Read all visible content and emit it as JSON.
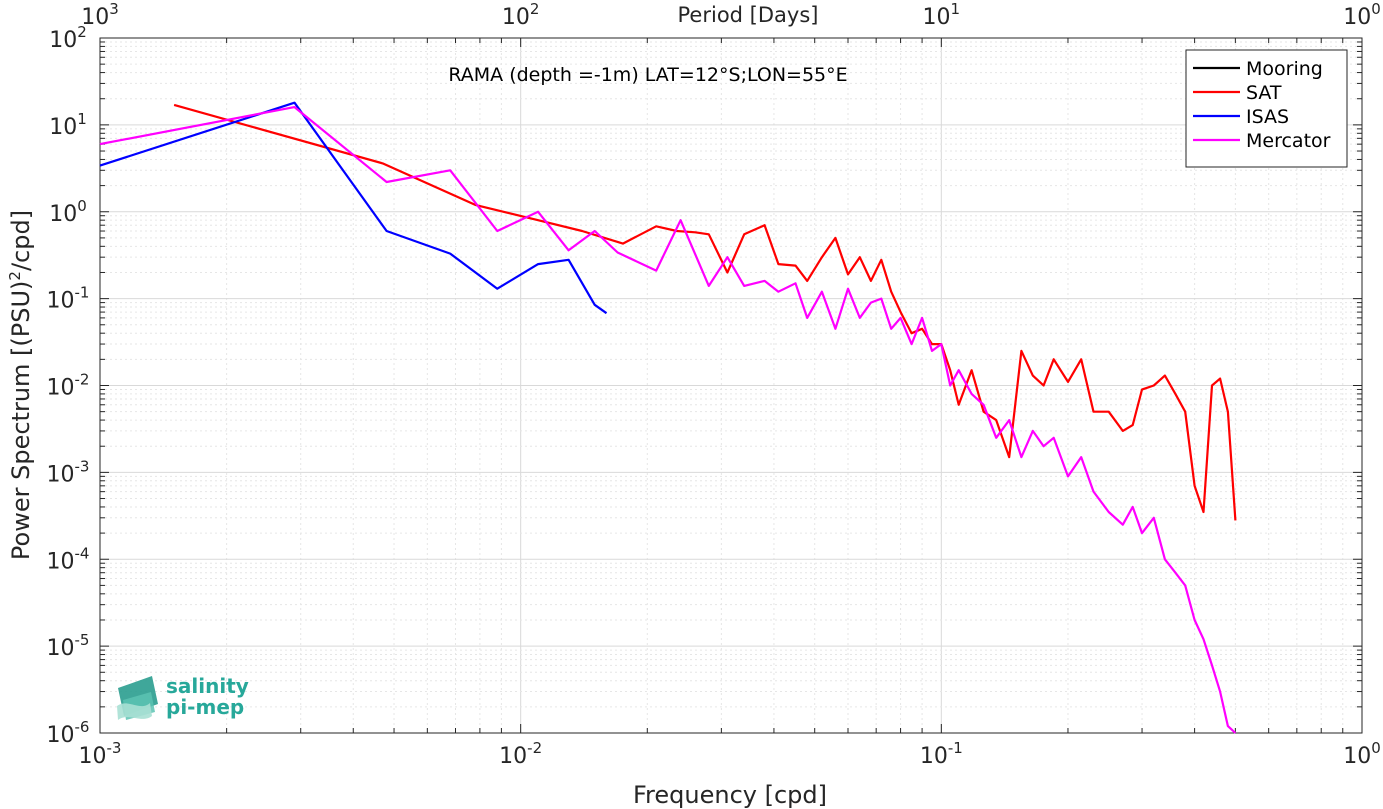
{
  "chart_data": {
    "type": "line",
    "x_scale": "log",
    "y_scale": "log",
    "xlabel": "Frequency [cpd]",
    "ylabel": "Power Spectrum [(PSU)",
    "ylabel_sup": "2",
    "ylabel_end": "/cpd]",
    "top_xlabel": "Period [Days]",
    "annotation": "RAMA (depth =-1m) LAT=12°S;LON=55°E",
    "xlim": [
      0.001,
      1
    ],
    "ylim": [
      1e-06,
      100
    ],
    "grid": true,
    "minor_grid": true,
    "legend_position": "top-right",
    "x_ticks": [
      {
        "v": 0.001,
        "base": "10",
        "exp": "-3"
      },
      {
        "v": 0.01,
        "base": "10",
        "exp": "-2"
      },
      {
        "v": 0.1,
        "base": "10",
        "exp": "-1"
      },
      {
        "v": 1,
        "base": "10",
        "exp": "0"
      }
    ],
    "top_ticks": [
      {
        "v": 0.001,
        "base": "10",
        "exp": "3"
      },
      {
        "v": 0.01,
        "base": "10",
        "exp": "2"
      },
      {
        "v": 0.1,
        "base": "10",
        "exp": "1"
      },
      {
        "v": 1,
        "base": "10",
        "exp": "0"
      }
    ],
    "y_ticks": [
      {
        "v": 100,
        "base": "10",
        "exp": "2"
      },
      {
        "v": 10,
        "base": "10",
        "exp": "1"
      },
      {
        "v": 1,
        "base": "10",
        "exp": "0"
      },
      {
        "v": 0.1,
        "base": "10",
        "exp": "-1"
      },
      {
        "v": 0.01,
        "base": "10",
        "exp": "-2"
      },
      {
        "v": 0.001,
        "base": "10",
        "exp": "-3"
      },
      {
        "v": 0.0001,
        "base": "10",
        "exp": "-4"
      },
      {
        "v": 1e-05,
        "base": "10",
        "exp": "-5"
      },
      {
        "v": 1e-06,
        "base": "10",
        "exp": "-6"
      }
    ],
    "series": [
      {
        "name": "Mooring",
        "color": "#000000",
        "x": [],
        "y": []
      },
      {
        "name": "SAT",
        "color": "#ff0000",
        "x": [
          0.0015,
          0.0047,
          0.0078,
          0.011,
          0.014,
          0.0175,
          0.021,
          0.0235,
          0.026,
          0.028,
          0.031,
          0.034,
          0.038,
          0.041,
          0.045,
          0.048,
          0.052,
          0.056,
          0.06,
          0.064,
          0.068,
          0.072,
          0.076,
          0.08,
          0.085,
          0.09,
          0.095,
          0.1,
          0.105,
          0.11,
          0.118,
          0.126,
          0.135,
          0.145,
          0.155,
          0.165,
          0.175,
          0.185,
          0.2,
          0.215,
          0.23,
          0.25,
          0.27,
          0.285,
          0.3,
          0.32,
          0.34,
          0.36,
          0.38,
          0.4,
          0.42,
          0.44,
          0.46,
          0.48,
          0.5
        ],
        "y": [
          17,
          3.6,
          1.2,
          0.8,
          0.6,
          0.43,
          0.68,
          0.6,
          0.58,
          0.55,
          0.2,
          0.55,
          0.7,
          0.25,
          0.24,
          0.16,
          0.3,
          0.5,
          0.19,
          0.3,
          0.16,
          0.28,
          0.12,
          0.07,
          0.04,
          0.045,
          0.03,
          0.03,
          0.015,
          0.006,
          0.015,
          0.005,
          0.004,
          0.0015,
          0.025,
          0.013,
          0.01,
          0.02,
          0.011,
          0.02,
          0.005,
          0.005,
          0.003,
          0.0035,
          0.009,
          0.01,
          0.013,
          0.008,
          0.005,
          0.0007,
          0.00035,
          0.01,
          0.012,
          0.005,
          0.00028
        ]
      },
      {
        "name": "ISAS",
        "color": "#0000ff",
        "x": [
          0.001,
          0.0029,
          0.0048,
          0.0068,
          0.0088,
          0.011,
          0.013,
          0.015,
          0.016
        ],
        "y": [
          3.4,
          18,
          0.6,
          0.33,
          0.13,
          0.25,
          0.28,
          0.085,
          0.068
        ]
      },
      {
        "name": "Mercator",
        "color": "#ff00ff",
        "x": [
          0.001,
          0.0029,
          0.0048,
          0.0068,
          0.0088,
          0.011,
          0.013,
          0.015,
          0.017,
          0.021,
          0.024,
          0.028,
          0.031,
          0.034,
          0.038,
          0.041,
          0.045,
          0.048,
          0.052,
          0.056,
          0.06,
          0.064,
          0.068,
          0.072,
          0.076,
          0.08,
          0.085,
          0.09,
          0.095,
          0.1,
          0.105,
          0.11,
          0.118,
          0.126,
          0.135,
          0.145,
          0.155,
          0.165,
          0.175,
          0.185,
          0.2,
          0.215,
          0.23,
          0.25,
          0.27,
          0.285,
          0.3,
          0.32,
          0.34,
          0.36,
          0.38,
          0.4,
          0.42,
          0.44,
          0.46,
          0.48,
          0.5
        ],
        "y": [
          6,
          16,
          2.2,
          3,
          0.6,
          1.0,
          0.36,
          0.6,
          0.34,
          0.21,
          0.8,
          0.14,
          0.3,
          0.14,
          0.16,
          0.12,
          0.15,
          0.06,
          0.12,
          0.045,
          0.13,
          0.06,
          0.09,
          0.1,
          0.045,
          0.06,
          0.03,
          0.06,
          0.025,
          0.03,
          0.01,
          0.015,
          0.008,
          0.006,
          0.0025,
          0.004,
          0.0015,
          0.003,
          0.002,
          0.0025,
          0.0009,
          0.0015,
          0.0006,
          0.00035,
          0.00025,
          0.0004,
          0.0002,
          0.0003,
          0.0001,
          7e-05,
          5e-05,
          2e-05,
          1.2e-05,
          6e-06,
          3e-06,
          1.2e-06,
          1e-06
        ]
      }
    ]
  },
  "logo": {
    "line1": "salinity",
    "line2": "pi-mep",
    "color": "#27a89a"
  }
}
